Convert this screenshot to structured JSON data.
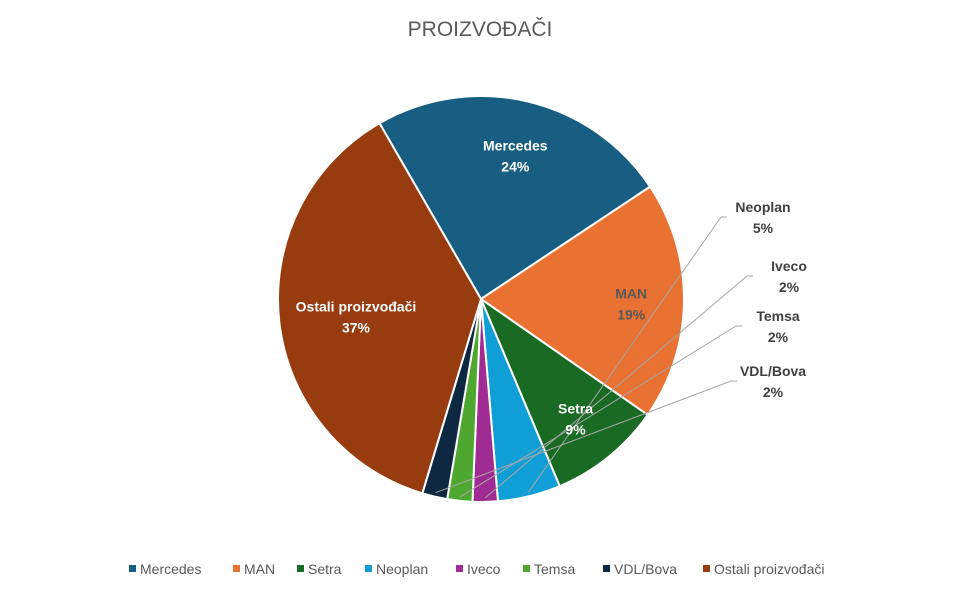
{
  "chart_data": {
    "type": "pie",
    "title": "PROIZVOĐAČI",
    "slices": [
      {
        "name": "Mercedes",
        "value": 24,
        "label": "24%",
        "color": "#185E82"
      },
      {
        "name": "MAN",
        "value": 19,
        "label": "19%",
        "color": "#E97132"
      },
      {
        "name": "Setra",
        "value": 9,
        "label": "9%",
        "color": "#196B24"
      },
      {
        "name": "Neoplan",
        "value": 5,
        "label": "5%",
        "color": "#0F9ED5"
      },
      {
        "name": "Iveco",
        "value": 2,
        "label": "2%",
        "color": "#A02B93"
      },
      {
        "name": "Temsa",
        "value": 2,
        "label": "2%",
        "color": "#4EA72E"
      },
      {
        "name": "VDL/Bova",
        "value": 2,
        "label": "2%",
        "color": "#0E2841"
      },
      {
        "name": "Ostali proizvođači",
        "value": 37,
        "label": "37%",
        "color": "#983C0F"
      }
    ],
    "legend_position": "bottom"
  }
}
